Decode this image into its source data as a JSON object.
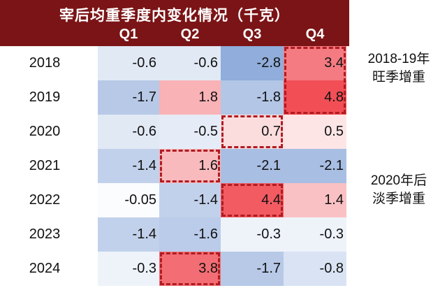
{
  "chart_data": {
    "type": "heatmap",
    "title": "宰后均重季度内变化情况（千克）",
    "columns": [
      "Q1",
      "Q2",
      "Q3",
      "Q4"
    ],
    "rows": [
      "2018",
      "2019",
      "2020",
      "2021",
      "2022",
      "2023",
      "2024"
    ],
    "values": [
      [
        -0.6,
        -0.6,
        -2.8,
        3.4
      ],
      [
        -1.7,
        1.8,
        -1.8,
        4.8
      ],
      [
        -0.6,
        -0.5,
        0.7,
        0.5
      ],
      [
        -1.4,
        1.6,
        -2.1,
        -2.1
      ],
      [
        -0.05,
        -1.4,
        4.4,
        1.4
      ],
      [
        -1.4,
        -1.6,
        -0.3,
        -0.3
      ],
      [
        -0.3,
        3.8,
        -1.7,
        -0.8
      ]
    ],
    "color_scale": {
      "negative": "#4a78c4",
      "zero": "#ffffff",
      "positive": "#f04850"
    },
    "highlights": [
      {
        "rows": [
          "2018",
          "2019"
        ],
        "columns": [
          "Q4"
        ]
      },
      {
        "rows": [
          "2020"
        ],
        "columns": [
          "Q3"
        ]
      },
      {
        "rows": [
          "2021"
        ],
        "columns": [
          "Q2"
        ]
      },
      {
        "rows": [
          "2022"
        ],
        "columns": [
          "Q3"
        ]
      },
      {
        "rows": [
          "2024"
        ],
        "columns": [
          "Q2"
        ]
      }
    ],
    "annotations": [
      {
        "lines": [
          "2018-19年",
          "旺季增重"
        ]
      },
      {
        "lines": [
          "2020年后",
          "淡季增重"
        ]
      }
    ]
  },
  "header_color": "#7b1416"
}
